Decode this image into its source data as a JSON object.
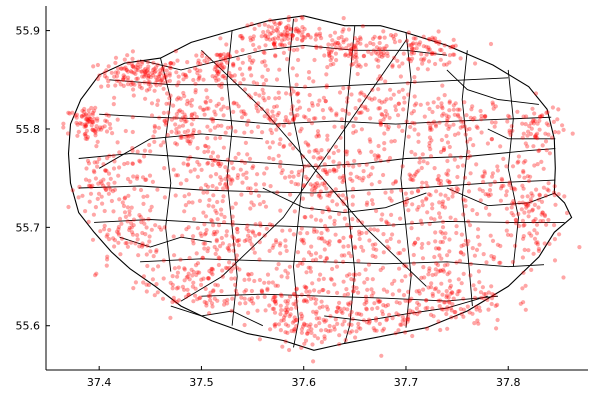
{
  "chart_data": {
    "type": "scatter",
    "title": "",
    "xlabel": "",
    "ylabel": "",
    "xlim": [
      37.348,
      37.878
    ],
    "ylim": [
      55.555,
      55.925
    ],
    "x_ticks": [
      {
        "value": 37.4,
        "label": "37.4"
      },
      {
        "value": 37.5,
        "label": "37.5"
      },
      {
        "value": 37.6,
        "label": "37.6"
      },
      {
        "value": 37.7,
        "label": "37.7"
      },
      {
        "value": 37.8,
        "label": "37.8"
      }
    ],
    "y_ticks": [
      {
        "value": 55.6,
        "label": "55.6"
      },
      {
        "value": 55.7,
        "label": "55.7"
      },
      {
        "value": 55.8,
        "label": "55.8"
      },
      {
        "value": 55.9,
        "label": "55.9"
      }
    ],
    "grid": false,
    "legend": "none",
    "point_color": "#ff0000",
    "boundary_color": "#000000",
    "city_boundary": [
      [
        37.37,
        55.775
      ],
      [
        37.372,
        55.805
      ],
      [
        37.382,
        55.83
      ],
      [
        37.4,
        55.855
      ],
      [
        37.425,
        55.867
      ],
      [
        37.46,
        55.872
      ],
      [
        37.49,
        55.888
      ],
      [
        37.53,
        55.9
      ],
      [
        37.565,
        55.91
      ],
      [
        37.6,
        55.915
      ],
      [
        37.64,
        55.905
      ],
      [
        37.675,
        55.905
      ],
      [
        37.7,
        55.898
      ],
      [
        37.74,
        55.885
      ],
      [
        37.785,
        55.865
      ],
      [
        37.82,
        55.843
      ],
      [
        37.838,
        55.82
      ],
      [
        37.845,
        55.79
      ],
      [
        37.846,
        55.76
      ],
      [
        37.845,
        55.735
      ],
      [
        37.855,
        55.725
      ],
      [
        37.862,
        55.71
      ],
      [
        37.845,
        55.695
      ],
      [
        37.83,
        55.67
      ],
      [
        37.8,
        55.64
      ],
      [
        37.76,
        55.615
      ],
      [
        37.72,
        55.598
      ],
      [
        37.68,
        55.59
      ],
      [
        37.64,
        55.582
      ],
      [
        37.61,
        55.575
      ],
      [
        37.58,
        55.585
      ],
      [
        37.545,
        55.592
      ],
      [
        37.51,
        55.605
      ],
      [
        37.48,
        55.62
      ],
      [
        37.455,
        55.64
      ],
      [
        37.43,
        55.658
      ],
      [
        37.412,
        55.675
      ],
      [
        37.395,
        55.695
      ],
      [
        37.38,
        55.715
      ],
      [
        37.372,
        55.745
      ],
      [
        37.37,
        55.775
      ]
    ],
    "district_lines": [
      [
        [
          37.38,
          55.77
        ],
        [
          37.43,
          55.775
        ],
        [
          37.48,
          55.772
        ],
        [
          37.52,
          55.768
        ],
        [
          37.57,
          55.765
        ],
        [
          37.61,
          55.762
        ],
        [
          37.66,
          55.765
        ],
        [
          37.7,
          55.77
        ],
        [
          37.76,
          55.772
        ],
        [
          37.82,
          55.778
        ],
        [
          37.846,
          55.78
        ]
      ],
      [
        [
          37.38,
          55.74
        ],
        [
          37.44,
          55.742
        ],
        [
          37.5,
          55.738
        ],
        [
          37.56,
          55.736
        ],
        [
          37.61,
          55.735
        ],
        [
          37.66,
          55.738
        ],
        [
          37.71,
          55.74
        ],
        [
          37.78,
          55.745
        ],
        [
          37.846,
          55.748
        ]
      ],
      [
        [
          37.395,
          55.705
        ],
        [
          37.45,
          55.708
        ],
        [
          37.5,
          55.705
        ],
        [
          37.56,
          55.702
        ],
        [
          37.62,
          55.7
        ],
        [
          37.68,
          55.702
        ],
        [
          37.74,
          55.706
        ],
        [
          37.8,
          55.705
        ],
        [
          37.855,
          55.705
        ]
      ],
      [
        [
          37.44,
          55.665
        ],
        [
          37.5,
          55.668
        ],
        [
          37.56,
          55.666
        ],
        [
          37.62,
          55.665
        ],
        [
          37.68,
          55.663
        ],
        [
          37.74,
          55.665
        ],
        [
          37.8,
          55.66
        ],
        [
          37.835,
          55.662
        ]
      ],
      [
        [
          37.5,
          55.63
        ],
        [
          37.56,
          55.632
        ],
        [
          37.62,
          55.63
        ],
        [
          37.68,
          55.628
        ],
        [
          37.74,
          55.625
        ],
        [
          37.79,
          55.63
        ]
      ],
      [
        [
          37.4,
          55.815
        ],
        [
          37.45,
          55.812
        ],
        [
          37.51,
          55.81
        ],
        [
          37.57,
          55.805
        ],
        [
          37.63,
          55.808
        ],
        [
          37.69,
          55.805
        ],
        [
          37.75,
          55.808
        ],
        [
          37.842,
          55.812
        ]
      ],
      [
        [
          37.41,
          55.85
        ],
        [
          37.47,
          55.845
        ],
        [
          37.54,
          55.845
        ],
        [
          37.6,
          55.842
        ],
        [
          37.66,
          55.845
        ],
        [
          37.72,
          55.848
        ],
        [
          37.8,
          55.852
        ]
      ],
      [
        [
          37.44,
          55.87
        ],
        [
          37.48,
          55.86
        ],
        [
          37.52,
          55.87
        ],
        [
          37.56,
          55.88
        ],
        [
          37.6,
          55.885
        ],
        [
          37.65,
          55.88
        ],
        [
          37.7,
          55.88
        ],
        [
          37.74,
          55.875
        ]
      ],
      [
        [
          37.46,
          55.872
        ],
        [
          37.47,
          55.83
        ],
        [
          37.465,
          55.79
        ],
        [
          37.47,
          55.745
        ],
        [
          37.465,
          55.7
        ],
        [
          37.47,
          55.655
        ]
      ],
      [
        [
          37.53,
          55.9
        ],
        [
          37.525,
          55.85
        ],
        [
          37.53,
          55.8
        ],
        [
          37.525,
          55.75
        ],
        [
          37.53,
          55.7
        ],
        [
          37.535,
          55.65
        ],
        [
          37.53,
          55.6
        ]
      ],
      [
        [
          37.59,
          55.912
        ],
        [
          37.585,
          55.86
        ],
        [
          37.59,
          55.81
        ],
        [
          37.6,
          55.76
        ],
        [
          37.595,
          55.71
        ],
        [
          37.59,
          55.66
        ],
        [
          37.595,
          55.605
        ],
        [
          37.59,
          55.578
        ]
      ],
      [
        [
          37.65,
          55.905
        ],
        [
          37.645,
          55.85
        ],
        [
          37.64,
          55.8
        ],
        [
          37.64,
          55.755
        ],
        [
          37.645,
          55.705
        ],
        [
          37.65,
          55.655
        ],
        [
          37.645,
          55.6
        ],
        [
          37.64,
          55.582
        ]
      ],
      [
        [
          37.7,
          55.898
        ],
        [
          37.705,
          55.85
        ],
        [
          37.7,
          55.8
        ],
        [
          37.695,
          55.75
        ],
        [
          37.7,
          55.7
        ],
        [
          37.705,
          55.65
        ],
        [
          37.7,
          55.598
        ]
      ],
      [
        [
          37.76,
          55.88
        ],
        [
          37.755,
          55.83
        ],
        [
          37.76,
          55.78
        ],
        [
          37.755,
          55.73
        ],
        [
          37.76,
          55.68
        ],
        [
          37.765,
          55.62
        ]
      ],
      [
        [
          37.8,
          55.86
        ],
        [
          37.805,
          55.81
        ],
        [
          37.8,
          55.76
        ],
        [
          37.81,
          55.71
        ],
        [
          37.805,
          55.66
        ]
      ],
      [
        [
          37.5,
          55.88
        ],
        [
          37.56,
          55.82
        ],
        [
          37.61,
          55.76
        ],
        [
          37.66,
          55.7
        ],
        [
          37.72,
          55.64
        ]
      ],
      [
        [
          37.7,
          55.89
        ],
        [
          37.66,
          55.83
        ],
        [
          37.62,
          55.77
        ],
        [
          37.58,
          55.71
        ],
        [
          37.52,
          55.65
        ],
        [
          37.48,
          55.625
        ]
      ],
      [
        [
          37.4,
          55.76
        ],
        [
          37.45,
          55.79
        ],
        [
          37.5,
          55.795
        ],
        [
          37.56,
          55.79
        ]
      ],
      [
        [
          37.56,
          55.74
        ],
        [
          37.6,
          55.72
        ],
        [
          37.64,
          55.715
        ],
        [
          37.68,
          55.72
        ],
        [
          37.72,
          55.735
        ]
      ],
      [
        [
          37.74,
          55.86
        ],
        [
          37.76,
          55.84
        ],
        [
          37.79,
          55.83
        ],
        [
          37.83,
          55.825
        ]
      ],
      [
        [
          37.78,
          55.8
        ],
        [
          37.8,
          55.79
        ],
        [
          37.846,
          55.79
        ]
      ],
      [
        [
          37.47,
          55.62
        ],
        [
          37.5,
          55.61
        ],
        [
          37.53,
          55.615
        ],
        [
          37.56,
          55.6
        ]
      ],
      [
        [
          37.62,
          55.61
        ],
        [
          37.66,
          55.605
        ],
        [
          37.7,
          55.612
        ],
        [
          37.74,
          55.618
        ],
        [
          37.78,
          55.63
        ]
      ],
      [
        [
          37.42,
          55.69
        ],
        [
          37.45,
          55.68
        ],
        [
          37.48,
          55.69
        ],
        [
          37.51,
          55.685
        ]
      ],
      [
        [
          37.74,
          55.74
        ],
        [
          37.78,
          55.722
        ],
        [
          37.82,
          55.725
        ],
        [
          37.846,
          55.735
        ]
      ]
    ],
    "point_clusters": [
      {
        "x": 37.44,
        "y": 55.855,
        "sx": 0.02,
        "sy": 0.008,
        "n": 140
      },
      {
        "x": 37.52,
        "y": 55.865,
        "sx": 0.025,
        "sy": 0.012,
        "n": 110
      },
      {
        "x": 37.58,
        "y": 55.895,
        "sx": 0.02,
        "sy": 0.008,
        "n": 110
      },
      {
        "x": 37.65,
        "y": 55.88,
        "sx": 0.025,
        "sy": 0.01,
        "n": 120
      },
      {
        "x": 37.72,
        "y": 55.88,
        "sx": 0.02,
        "sy": 0.008,
        "n": 80
      },
      {
        "x": 37.39,
        "y": 55.805,
        "sx": 0.012,
        "sy": 0.01,
        "n": 80
      },
      {
        "x": 37.48,
        "y": 55.81,
        "sx": 0.025,
        "sy": 0.02,
        "n": 140
      },
      {
        "x": 37.58,
        "y": 55.815,
        "sx": 0.03,
        "sy": 0.02,
        "n": 130
      },
      {
        "x": 37.67,
        "y": 55.82,
        "sx": 0.025,
        "sy": 0.02,
        "n": 100
      },
      {
        "x": 37.75,
        "y": 55.808,
        "sx": 0.03,
        "sy": 0.012,
        "n": 110
      },
      {
        "x": 37.83,
        "y": 55.8,
        "sx": 0.012,
        "sy": 0.015,
        "n": 60
      },
      {
        "x": 37.41,
        "y": 55.745,
        "sx": 0.02,
        "sy": 0.02,
        "n": 90
      },
      {
        "x": 37.52,
        "y": 55.75,
        "sx": 0.03,
        "sy": 0.02,
        "n": 120
      },
      {
        "x": 37.62,
        "y": 55.755,
        "sx": 0.025,
        "sy": 0.015,
        "n": 110
      },
      {
        "x": 37.72,
        "y": 55.745,
        "sx": 0.03,
        "sy": 0.02,
        "n": 110
      },
      {
        "x": 37.81,
        "y": 55.74,
        "sx": 0.02,
        "sy": 0.02,
        "n": 90
      },
      {
        "x": 37.43,
        "y": 55.695,
        "sx": 0.02,
        "sy": 0.02,
        "n": 80
      },
      {
        "x": 37.53,
        "y": 55.69,
        "sx": 0.03,
        "sy": 0.02,
        "n": 130
      },
      {
        "x": 37.63,
        "y": 55.685,
        "sx": 0.03,
        "sy": 0.025,
        "n": 140
      },
      {
        "x": 37.73,
        "y": 55.68,
        "sx": 0.03,
        "sy": 0.025,
        "n": 130
      },
      {
        "x": 37.82,
        "y": 55.7,
        "sx": 0.015,
        "sy": 0.02,
        "n": 60
      },
      {
        "x": 37.49,
        "y": 55.64,
        "sx": 0.025,
        "sy": 0.015,
        "n": 100
      },
      {
        "x": 37.58,
        "y": 55.63,
        "sx": 0.025,
        "sy": 0.015,
        "n": 110
      },
      {
        "x": 37.66,
        "y": 55.615,
        "sx": 0.025,
        "sy": 0.015,
        "n": 110
      },
      {
        "x": 37.74,
        "y": 55.625,
        "sx": 0.03,
        "sy": 0.015,
        "n": 120
      },
      {
        "x": 37.6,
        "y": 55.595,
        "sx": 0.015,
        "sy": 0.01,
        "n": 60
      }
    ]
  }
}
